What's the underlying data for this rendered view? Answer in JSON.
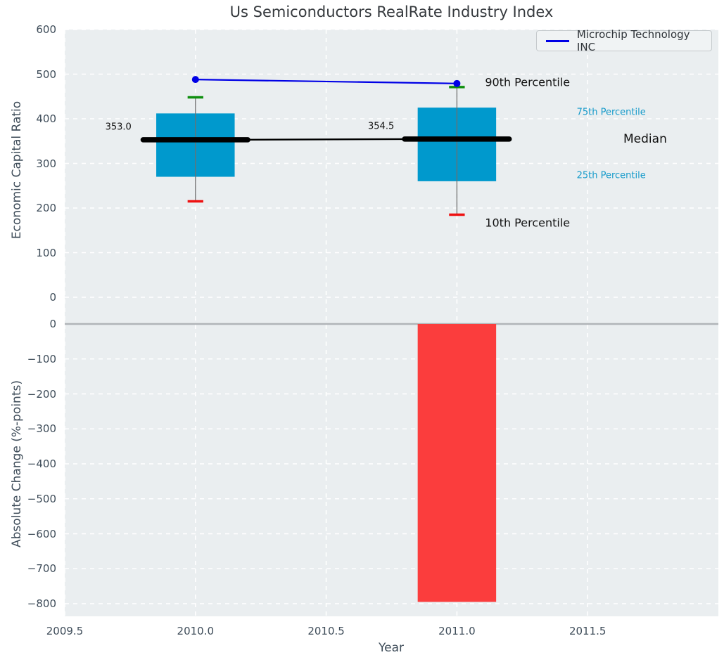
{
  "figure_title": "Us Semiconductors RealRate Industry Index",
  "colors": {
    "axes_background": "#eaeef0",
    "gridline": "#ffffff",
    "tick_text": "#3e4c59",
    "box_fill": "#0099cd",
    "bar_fill": "#fb3d3d",
    "company_line": "#0000e6",
    "cap_90th": "#0f8f0f",
    "cap_10th": "#ee1111",
    "median_line": "#000000",
    "percentile_text": "#149aca",
    "zero_line": "#b0b4b8"
  },
  "chart_data": [
    {
      "type": "box",
      "title": "Us Semiconductors RealRate Industry Index",
      "ylabel": "Economic Capital Ratio",
      "xlabel": "",
      "xlim": [
        2009.5,
        2012.0
      ],
      "ylim": [
        -32,
        600
      ],
      "yticks": [
        600,
        500,
        400,
        300,
        200,
        100,
        0
      ],
      "grid": true,
      "legend_position": "upper right",
      "box_half_width": 0.15,
      "median_bar_half_width": 0.2,
      "cap_half_width": 0.03,
      "boxes": [
        {
          "x": 2010.0,
          "p10": 215,
          "p25": 270,
          "median": 353.0,
          "p75": 412,
          "p90": 448,
          "median_label": "353.0"
        },
        {
          "x": 2011.0,
          "p10": 185,
          "p25": 260,
          "median": 354.5,
          "p75": 425,
          "p90": 471,
          "median_label": "354.5"
        }
      ],
      "series": [
        {
          "name": "Microchip Technology INC",
          "color": "#0000e6",
          "marker": "circle",
          "x": [
            2010.0,
            2011.0
          ],
          "values": [
            488,
            479
          ]
        }
      ],
      "annotations": [
        {
          "id": "label-median-2010",
          "text": "353.0",
          "x": 2009.705,
          "y": 381,
          "color": "#111111",
          "size": 13
        },
        {
          "id": "label-median-2011",
          "text": "354.5",
          "x": 2010.71,
          "y": 383,
          "color": "#111111",
          "size": 13
        },
        {
          "id": "label-90th-percentile",
          "text": "90th Percentile",
          "x": 2011.27,
          "y": 482,
          "color": "#111111",
          "size": 16
        },
        {
          "id": "label-10th-percentile",
          "text": "10th Percentile",
          "x": 2011.27,
          "y": 167,
          "color": "#111111",
          "size": 16
        },
        {
          "id": "label-75th-percentile",
          "text": "75th Percentile",
          "x": 2011.59,
          "y": 414,
          "color": "#149aca",
          "size": 13
        },
        {
          "id": "label-median",
          "text": "Median",
          "x": 2011.72,
          "y": 354,
          "color": "#111111",
          "size": 17
        },
        {
          "id": "label-25th-percentile",
          "text": "25th Percentile",
          "x": 2011.59,
          "y": 272,
          "color": "#149aca",
          "size": 13
        }
      ]
    },
    {
      "type": "bar",
      "ylabel": "Absolute Change (%-points)",
      "xlabel": "Year",
      "xlim": [
        2009.5,
        2012.0
      ],
      "ylim": [
        -836,
        36
      ],
      "yticks": [
        0,
        -100,
        -200,
        -300,
        -400,
        -500,
        -600,
        -700,
        -800
      ],
      "xtick_values": [
        2009.5,
        2010.0,
        2010.5,
        2011.0,
        2011.5
      ],
      "xtick_labels": [
        "2009.5",
        "2010.0",
        "2010.5",
        "2011.0",
        "2011.5"
      ],
      "grid": true,
      "zero_line": true,
      "bar_half_width": 0.15,
      "bars": [
        {
          "x": 2011.0,
          "value": -795,
          "color": "#fb3d3d"
        }
      ]
    }
  ]
}
